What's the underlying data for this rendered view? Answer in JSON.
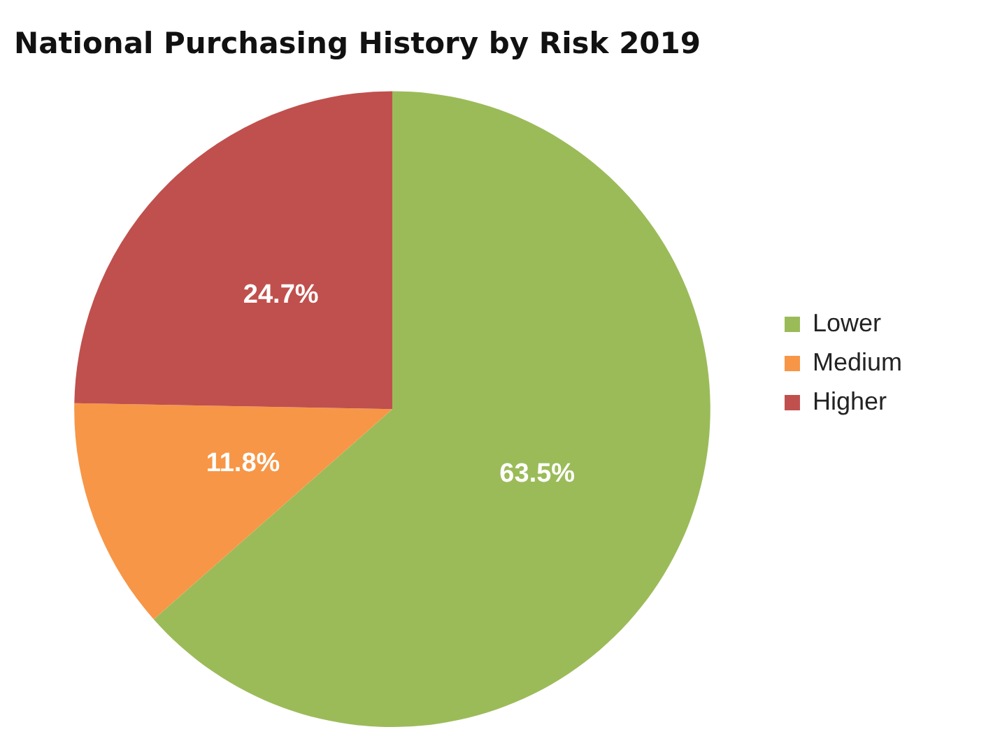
{
  "chart_data": {
    "type": "pie",
    "title": "National Purchasing History by Risk 2019",
    "categories": [
      "Lower",
      "Medium",
      "Higher"
    ],
    "values": [
      63.5,
      11.8,
      24.7
    ],
    "colors": [
      "#9bbb59",
      "#f79646",
      "#c0504d"
    ],
    "value_labels": [
      "63.5%",
      "11.8%",
      "24.7%"
    ],
    "legend": "right"
  }
}
